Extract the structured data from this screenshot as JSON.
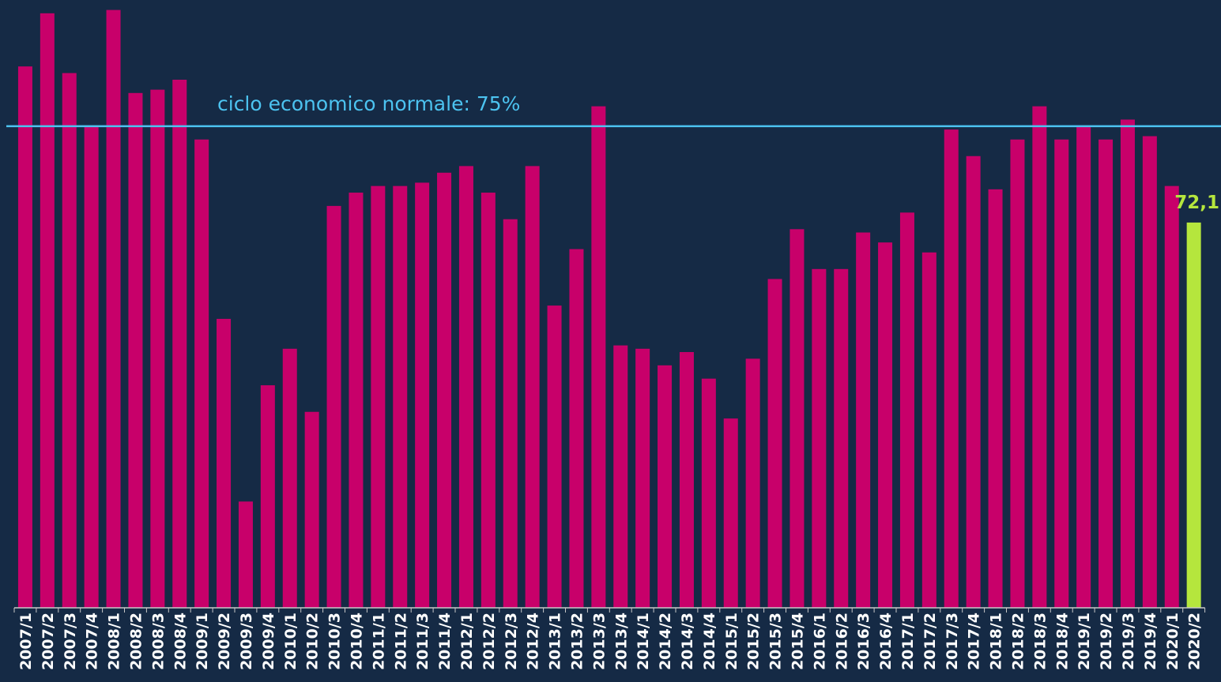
{
  "chart_data": {
    "type": "bar",
    "categories": [
      "2007/1",
      "2007/2",
      "2007/3",
      "2007/4",
      "2008/1",
      "2008/2",
      "2008/3",
      "2008/4",
      "2009/1",
      "2009/2",
      "2009/3",
      "2009/4",
      "2010/1",
      "2010/2",
      "2010/3",
      "2010/4",
      "2011/1",
      "2011/2",
      "2011/3",
      "2011/4",
      "2012/1",
      "2012/2",
      "2012/3",
      "2012/4",
      "2013/1",
      "2013/2",
      "2013/3",
      "2013/4",
      "2014/1",
      "2014/2",
      "2014/3",
      "2014/4",
      "2015/1",
      "2015/2",
      "2015/3",
      "2015/4",
      "2016/1",
      "2016/2",
      "2016/3",
      "2016/4",
      "2017/1",
      "2017/2",
      "2017/3",
      "2017/4",
      "2018/1",
      "2018/2",
      "2018/3",
      "2018/4",
      "2019/1",
      "2019/2",
      "2019/3",
      "2019/4",
      "2020/1",
      "2020/2"
    ],
    "values": [
      76.8,
      78.4,
      76.6,
      75.0,
      78.5,
      76.0,
      76.1,
      76.4,
      74.6,
      69.2,
      63.7,
      67.2,
      68.3,
      66.4,
      72.6,
      73.0,
      73.2,
      73.2,
      73.3,
      73.6,
      73.8,
      73.0,
      72.2,
      73.8,
      69.6,
      71.3,
      75.6,
      68.4,
      68.3,
      67.8,
      68.2,
      67.4,
      66.2,
      68.0,
      70.4,
      71.9,
      70.7,
      70.7,
      71.8,
      71.5,
      72.4,
      71.2,
      74.9,
      74.1,
      73.1,
      74.6,
      75.6,
      74.6,
      75.0,
      74.6,
      75.2,
      74.7,
      73.2,
      72.1
    ],
    "value_labels": [
      null,
      null,
      null,
      null,
      null,
      null,
      null,
      null,
      null,
      null,
      null,
      null,
      null,
      null,
      null,
      null,
      null,
      null,
      null,
      null,
      null,
      null,
      null,
      null,
      null,
      null,
      null,
      null,
      null,
      null,
      null,
      null,
      null,
      null,
      null,
      null,
      null,
      null,
      null,
      null,
      null,
      null,
      null,
      null,
      null,
      null,
      null,
      null,
      null,
      null,
      null,
      null,
      null,
      "72,1"
    ],
    "colors": [
      "#c8006a",
      "#c8006a",
      "#c8006a",
      "#c8006a",
      "#c8006a",
      "#c8006a",
      "#c8006a",
      "#c8006a",
      "#c8006a",
      "#c8006a",
      "#c8006a",
      "#c8006a",
      "#c8006a",
      "#c8006a",
      "#c8006a",
      "#c8006a",
      "#c8006a",
      "#c8006a",
      "#c8006a",
      "#c8006a",
      "#c8006a",
      "#c8006a",
      "#c8006a",
      "#c8006a",
      "#c8006a",
      "#c8006a",
      "#c8006a",
      "#c8006a",
      "#c8006a",
      "#c8006a",
      "#c8006a",
      "#c8006a",
      "#c8006a",
      "#c8006a",
      "#c8006a",
      "#c8006a",
      "#c8006a",
      "#c8006a",
      "#c8006a",
      "#c8006a",
      "#c8006a",
      "#c8006a",
      "#c8006a",
      "#c8006a",
      "#c8006a",
      "#c8006a",
      "#c8006a",
      "#c8006a",
      "#c8006a",
      "#c8006a",
      "#c8006a",
      "#c8006a",
      "#c8006a",
      "#b5e63d"
    ],
    "label_color": "#b5e63d",
    "ylim": [
      60.5,
      78.8
    ],
    "reference_line": {
      "value": 75,
      "label": "ciclo economico normale: 75%",
      "color": "#4cc3f0"
    }
  }
}
